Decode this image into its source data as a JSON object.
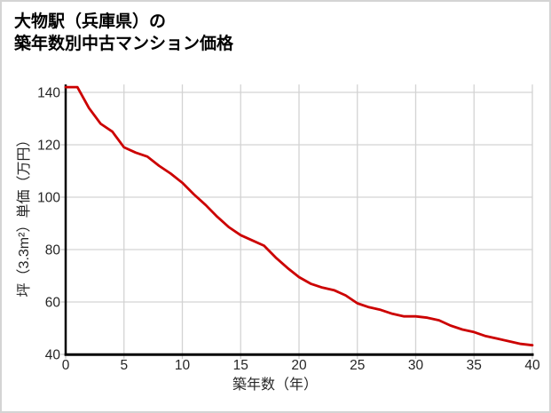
{
  "title": {
    "line1": "大物駅（兵庫県）の",
    "line2": "築年数別中古マンション価格"
  },
  "chart_data": {
    "type": "line",
    "title": "大物駅（兵庫県）の築年数別中古マンション価格",
    "xlabel": "築年数（年）",
    "ylabel": "坪（3.3m²）単価（万円）",
    "x": [
      0,
      1,
      2,
      3,
      4,
      5,
      6,
      7,
      8,
      9,
      10,
      11,
      12,
      13,
      14,
      15,
      16,
      17,
      18,
      19,
      20,
      21,
      22,
      23,
      24,
      25,
      26,
      27,
      28,
      29,
      30,
      31,
      32,
      33,
      34,
      35,
      36,
      37,
      38,
      39,
      40
    ],
    "values": [
      142,
      142,
      134,
      128,
      125,
      119,
      117,
      115.5,
      112,
      109,
      105.5,
      101,
      97,
      92.5,
      88.5,
      85.5,
      83.5,
      81.5,
      77,
      73,
      69.5,
      67,
      65.5,
      64.5,
      62.5,
      59.5,
      58,
      57,
      55.5,
      54.5,
      54.5,
      54,
      53,
      51,
      49.5,
      48.5,
      47,
      46,
      45,
      44,
      43.5
    ],
    "xlim": [
      0,
      40
    ],
    "ylim": [
      40,
      143
    ],
    "xticks": [
      0,
      5,
      10,
      15,
      20,
      25,
      30,
      35,
      40
    ],
    "yticks": [
      40,
      60,
      80,
      100,
      120,
      140
    ],
    "grid": true,
    "legend": "none",
    "line_color": "#cc0000",
    "grid_color": "#d3d3d3",
    "tick_color": "#c9c9c9",
    "axis_color": "#000000",
    "text_color": "#262626"
  }
}
